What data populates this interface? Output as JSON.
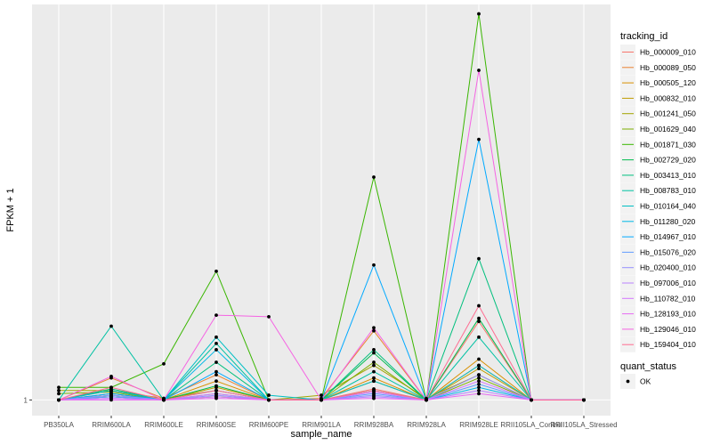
{
  "chart_data": {
    "type": "line",
    "xlabel": "sample_name",
    "ylabel": "FPKM + 1",
    "y_ticks": [
      {
        "value": 1,
        "label": "1"
      }
    ],
    "ylim": [
      0,
      26.2
    ],
    "categories": [
      "PB350LA",
      "RRIM600LA",
      "RRIM600LE",
      "RRIM600SE",
      "RRIM600PE",
      "RRIM901LA",
      "RRIM928BA",
      "RRIM928LA",
      "RRIM928LE",
      "RRII105LA_Control",
      "RRII105LA_Stressed"
    ],
    "legend": {
      "title": "tracking_id",
      "position": "right"
    },
    "series": [
      {
        "name": "Hb_000009_010",
        "color": "#F8766D",
        "values": [
          1.0,
          1.6,
          1.0,
          1.4,
          1.0,
          1.0,
          1.7,
          1.0,
          6.0,
          1.0,
          1.0
        ]
      },
      {
        "name": "Hb_000089_050",
        "color": "#EA8331",
        "values": [
          1.0,
          2.4,
          1.1,
          2.6,
          1.0,
          1.1,
          5.4,
          1.0,
          3.2,
          1.0,
          1.0
        ]
      },
      {
        "name": "Hb_000505_120",
        "color": "#D89000",
        "values": [
          1.0,
          1.4,
          1.0,
          2.2,
          1.0,
          1.0,
          2.4,
          1.0,
          3.6,
          1.0,
          1.0
        ]
      },
      {
        "name": "Hb_000832_010",
        "color": "#C09B00",
        "values": [
          1.0,
          1.2,
          1.0,
          1.8,
          1.0,
          1.0,
          2.2,
          1.0,
          3.0,
          1.0,
          1.0
        ]
      },
      {
        "name": "Hb_001241_050",
        "color": "#A3A500",
        "values": [
          1.6,
          1.6,
          1.1,
          1.6,
          1.0,
          1.3,
          3.2,
          1.1,
          2.6,
          1.0,
          1.0
        ]
      },
      {
        "name": "Hb_001629_040",
        "color": "#7CAE00",
        "values": [
          1.4,
          1.5,
          1.0,
          1.2,
          1.0,
          1.0,
          3.4,
          1.0,
          2.4,
          1.0,
          1.0
        ]
      },
      {
        "name": "Hb_001871_030",
        "color": "#39B600",
        "values": [
          1.8,
          1.8,
          3.3,
          9.2,
          1.0,
          1.0,
          15.2,
          1.0,
          25.6,
          1.0,
          1.0
        ]
      },
      {
        "name": "Hb_002729_020",
        "color": "#00BB4E",
        "values": [
          1.0,
          1.3,
          1.0,
          1.9,
          1.0,
          1.0,
          4.0,
          1.0,
          6.2,
          1.0,
          1.0
        ]
      },
      {
        "name": "Hb_003413_010",
        "color": "#00BF7D",
        "values": [
          1.0,
          1.7,
          1.0,
          3.4,
          1.0,
          1.0,
          4.2,
          1.0,
          10.0,
          1.0,
          1.0
        ]
      },
      {
        "name": "Hb_008783_010",
        "color": "#00C1A3",
        "values": [
          1.0,
          5.7,
          1.0,
          4.6,
          1.0,
          1.0,
          2.8,
          1.0,
          5.0,
          1.0,
          1.0
        ]
      },
      {
        "name": "Hb_010164_040",
        "color": "#00BFC4",
        "values": [
          1.0,
          1.6,
          1.0,
          5.0,
          1.3,
          1.0,
          2.2,
          1.0,
          3.2,
          1.0,
          1.0
        ]
      },
      {
        "name": "Hb_011280_020",
        "color": "#00B8E7",
        "values": [
          1.0,
          1.2,
          1.0,
          4.2,
          1.0,
          1.0,
          1.6,
          1.0,
          1.8,
          1.0,
          1.0
        ]
      },
      {
        "name": "Hb_014967_010",
        "color": "#00A9FF",
        "values": [
          1.0,
          1.4,
          1.0,
          2.8,
          1.0,
          1.0,
          9.6,
          1.0,
          17.6,
          1.0,
          1.0
        ]
      },
      {
        "name": "Hb_015076_020",
        "color": "#619CFF",
        "values": [
          1.0,
          1.2,
          1.0,
          1.6,
          1.0,
          1.0,
          1.4,
          1.0,
          2.0,
          1.0,
          1.0
        ]
      },
      {
        "name": "Hb_020400_010",
        "color": "#9590FF",
        "values": [
          1.0,
          1.3,
          1.0,
          1.3,
          1.0,
          1.0,
          1.3,
          1.0,
          2.6,
          1.0,
          1.0
        ]
      },
      {
        "name": "Hb_097006_010",
        "color": "#B983FF",
        "values": [
          1.0,
          1.1,
          1.0,
          1.4,
          1.0,
          1.0,
          1.2,
          1.0,
          1.6,
          1.0,
          1.0
        ]
      },
      {
        "name": "Hb_110782_010",
        "color": "#D376FF",
        "values": [
          1.0,
          1.1,
          1.0,
          1.2,
          1.0,
          1.0,
          1.5,
          1.0,
          2.2,
          1.0,
          1.0
        ]
      },
      {
        "name": "Hb_128193_010",
        "color": "#E76BF3",
        "values": [
          1.0,
          1.0,
          1.0,
          1.1,
          1.0,
          1.0,
          1.1,
          1.0,
          1.4,
          1.0,
          1.0
        ]
      },
      {
        "name": "Hb_129046_010",
        "color": "#F564E3",
        "values": [
          1.0,
          2.5,
          1.0,
          6.4,
          6.3,
          1.0,
          5.6,
          1.0,
          22.0,
          1.0,
          1.0
        ]
      },
      {
        "name": "Hb_159404_010",
        "color": "#FF6C91",
        "values": [
          1.0,
          1.8,
          1.0,
          1.6,
          1.0,
          1.0,
          1.6,
          1.0,
          7.0,
          1.0,
          1.0
        ]
      }
    ],
    "shape_legend": {
      "title": "quant_status",
      "items": [
        {
          "label": "OK"
        }
      ]
    }
  }
}
